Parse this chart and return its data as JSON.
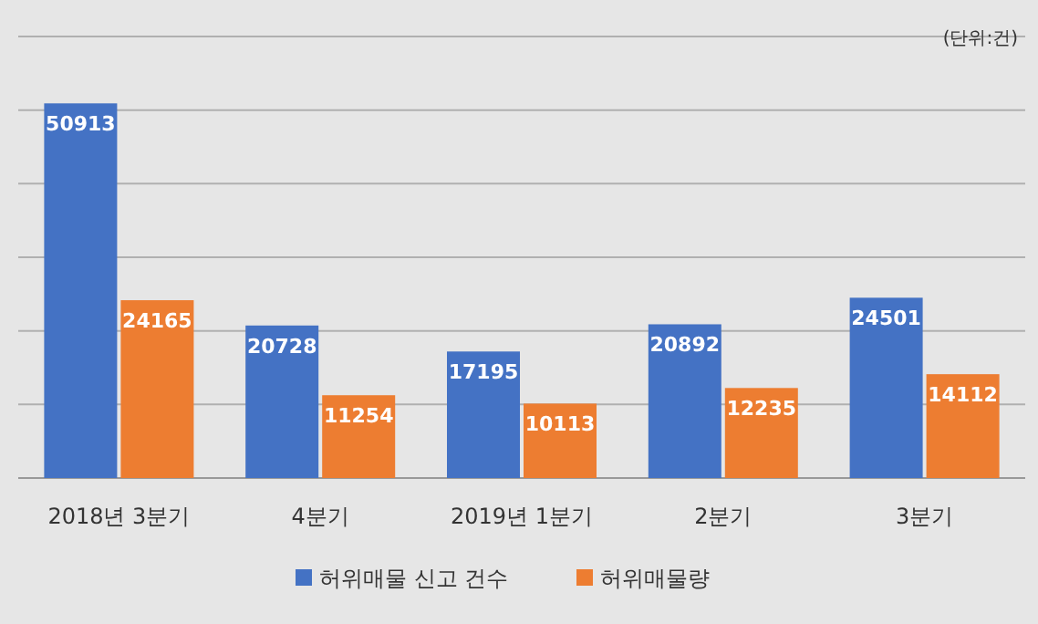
{
  "chart_data": {
    "type": "bar",
    "categories": [
      "2018년 3분기",
      "4분기",
      "2019년 1분기",
      "2분기",
      "3분기"
    ],
    "series": [
      {
        "name": "허위매물 신고 건수",
        "color": "#4472c4",
        "values": [
          50913,
          20728,
          17195,
          20892,
          24501
        ]
      },
      {
        "name": "허위매물량",
        "color": "#ed7d31",
        "values": [
          24165,
          11254,
          10113,
          12235,
          14112
        ]
      }
    ],
    "ylim": [
      0,
      60000
    ],
    "yticks": [
      {
        "value": 0,
        "label": null
      },
      {
        "value": 10000,
        "label": null
      },
      {
        "value": 20000,
        "label": null
      },
      {
        "value": 30000,
        "label": null
      },
      {
        "value": 40000,
        "label": null
      },
      {
        "value": 50000,
        "label": null
      },
      {
        "value": 60000,
        "label": null
      }
    ],
    "grid": "y",
    "data_labels": true,
    "legend": "bottom",
    "tick_labels": "x",
    "annotations": [
      "(단위:건)"
    ]
  }
}
